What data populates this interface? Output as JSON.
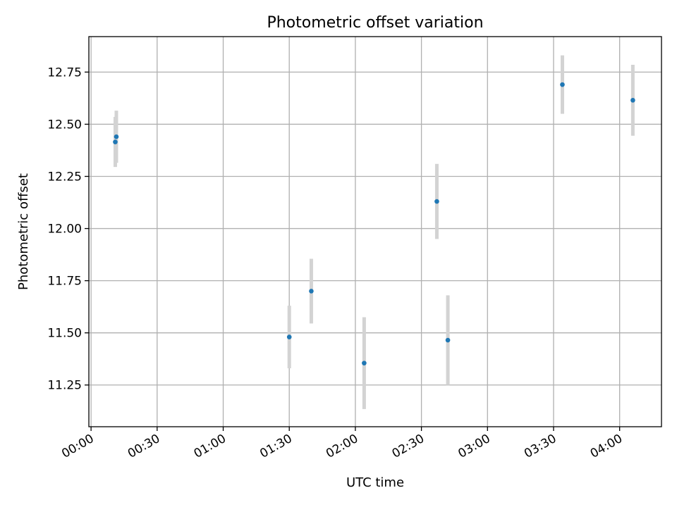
{
  "chart_data": {
    "type": "scatter",
    "title": "Photometric offset variation",
    "xlabel": "UTC time",
    "ylabel": "Photometric offset",
    "x_tick_labels": [
      "00:00",
      "00:30",
      "01:00",
      "01:30",
      "02:00",
      "02:30",
      "03:00",
      "03:30",
      "04:00"
    ],
    "x_tick_minutes": [
      0,
      30,
      60,
      90,
      120,
      150,
      180,
      210,
      240
    ],
    "y_tick_labels": [
      "11.25",
      "11.50",
      "11.75",
      "12.00",
      "12.25",
      "12.50",
      "12.75"
    ],
    "y_tick_values": [
      11.25,
      11.5,
      11.75,
      12.0,
      12.25,
      12.5,
      12.75
    ],
    "xlim": [
      "23:59",
      "04:19"
    ],
    "ylim": [
      11.05,
      12.92
    ],
    "grid": true,
    "point_color": "#1f77b4",
    "errorbar_color": "#d3d3d3",
    "points": [
      {
        "time": "00:11",
        "y": 12.415,
        "err": 0.12
      },
      {
        "time": "00:11",
        "y": 12.44,
        "err": 0.125
      },
      {
        "time": "01:30",
        "y": 11.48,
        "err": 0.15
      },
      {
        "time": "01:40",
        "y": 11.7,
        "err": 0.155
      },
      {
        "time": "02:04",
        "y": 11.355,
        "err": 0.22
      },
      {
        "time": "02:37",
        "y": 12.13,
        "err": 0.18
      },
      {
        "time": "02:42",
        "y": 11.465,
        "err": 0.215
      },
      {
        "time": "03:34",
        "y": 12.69,
        "err": 0.14
      },
      {
        "time": "04:06",
        "y": 12.615,
        "err": 0.17
      }
    ]
  }
}
